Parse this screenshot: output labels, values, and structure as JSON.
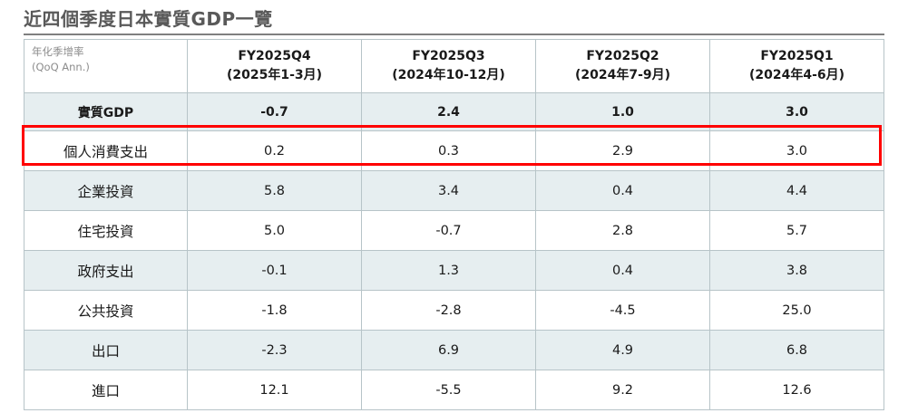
{
  "title": "近四個季度日本實質GDP一覽",
  "corner": {
    "line1": "年化季增率",
    "line2": "(QoQ Ann.)"
  },
  "columns": [
    {
      "quarter": "FY2025Q4",
      "period": "(2025年1-3月)"
    },
    {
      "quarter": "FY2025Q3",
      "period": "(2024年10-12月)"
    },
    {
      "quarter": "FY2025Q2",
      "period": "(2024年7-9月)"
    },
    {
      "quarter": "FY2025Q1",
      "period": "(2024年4-6月)"
    }
  ],
  "rows": [
    {
      "label": "實質GDP",
      "values": [
        "-0.7",
        "2.4",
        "1.0",
        "3.0"
      ]
    },
    {
      "label": "個人消費支出",
      "values": [
        "0.2",
        "0.3",
        "2.9",
        "3.0"
      ]
    },
    {
      "label": "企業投資",
      "values": [
        "5.8",
        "3.4",
        "0.4",
        "4.4"
      ]
    },
    {
      "label": "住宅投資",
      "values": [
        "5.0",
        "-0.7",
        "2.8",
        "5.7"
      ]
    },
    {
      "label": "政府支出",
      "values": [
        "-0.1",
        "1.3",
        "0.4",
        "3.8"
      ]
    },
    {
      "label": "公共投資",
      "values": [
        "-1.8",
        "-2.8",
        "-4.5",
        "25.0"
      ]
    },
    {
      "label": "出口",
      "values": [
        "-2.3",
        "6.9",
        "4.9",
        "6.8"
      ]
    },
    {
      "label": "進口",
      "values": [
        "12.1",
        "-5.5",
        "9.2",
        "12.6"
      ]
    }
  ],
  "highlight_color": "#ff0000"
}
